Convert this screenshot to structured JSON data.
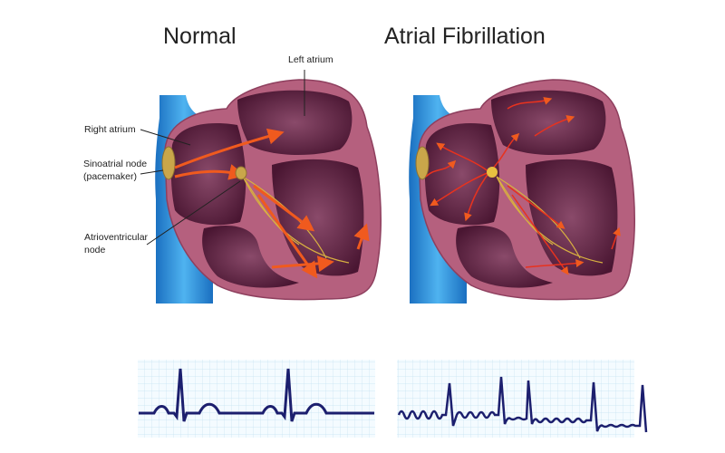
{
  "titles": {
    "normal": "Normal",
    "afib": "Atrial Fibrillation"
  },
  "labels": {
    "left_atrium": "Left atrium",
    "right_atrium": "Right atrium",
    "sa_node_1": "Sinoatrial node",
    "sa_node_2": "(pacemaker)",
    "av_node_1": "Atrioventricular",
    "av_node_2": "node"
  },
  "colors": {
    "vessel": "#1e88d8",
    "heart_wall": "#b5607e",
    "chamber": "#5a1f3e",
    "arrow": "#f05a1e",
    "node": "#c9a64a",
    "ecg_line": "#1c1f6e",
    "ecg_grid": "#a9d3ea"
  }
}
